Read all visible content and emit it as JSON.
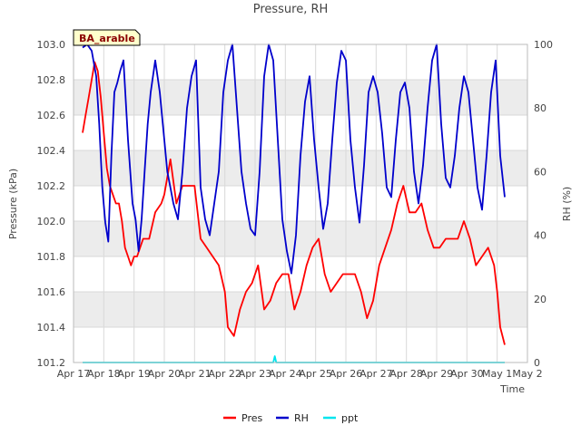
{
  "chart_data": {
    "type": "line",
    "title": "Pressure, RH",
    "site_label": "BA_arable",
    "xlabel": "Time",
    "ylabel_left": "Pressure (kPa)",
    "ylabel_right": "RH (%)",
    "x_ticks": [
      "Apr 17",
      "Apr 18",
      "Apr 19",
      "Apr 20",
      "Apr 21",
      "Apr 22",
      "Apr 23",
      "Apr 24",
      "Apr 25",
      "Apr 26",
      "Apr 27",
      "Apr 28",
      "Apr 29",
      "Apr 30",
      "May 1",
      "May 2"
    ],
    "xlim_days": [
      0,
      15
    ],
    "ylim_left": [
      101.2,
      103.0
    ],
    "left_ticks": [
      "101.2",
      "101.4",
      "101.6",
      "101.8",
      "102.0",
      "102.2",
      "102.4",
      "102.6",
      "102.8",
      "103.0"
    ],
    "ylim_right": [
      0,
      100
    ],
    "right_ticks": [
      "0",
      "20",
      "40",
      "60",
      "80",
      "100"
    ],
    "colors": {
      "Pres": "#ff0000",
      "RH": "#0000cc",
      "ppt": "#00e5ee",
      "band": "#ececec",
      "grid": "#d9d9d9"
    },
    "legend": [
      {
        "name": "Pres",
        "color": "#ff0000"
      },
      {
        "name": "RH",
        "color": "#0000cc"
      },
      {
        "name": "ppt",
        "color": "#00e5ee"
      }
    ],
    "series": [
      {
        "name": "Pres",
        "axis": "left",
        "x": [
          0.3,
          0.4,
          0.5,
          0.6,
          0.7,
          0.8,
          0.9,
          1.0,
          1.1,
          1.2,
          1.3,
          1.4,
          1.5,
          1.6,
          1.7,
          1.8,
          1.9,
          2.0,
          2.1,
          2.2,
          2.3,
          2.5,
          2.7,
          2.9,
          3.0,
          3.2,
          3.4,
          3.6,
          3.8,
          4.0,
          4.2,
          4.4,
          4.6,
          4.8,
          5.0,
          5.1,
          5.3,
          5.5,
          5.7,
          5.9,
          6.1,
          6.3,
          6.5,
          6.7,
          6.9,
          7.1,
          7.3,
          7.5,
          7.7,
          7.9,
          8.1,
          8.3,
          8.5,
          8.7,
          8.9,
          9.1,
          9.3,
          9.5,
          9.7,
          9.9,
          10.1,
          10.3,
          10.5,
          10.7,
          10.9,
          11.1,
          11.3,
          11.5,
          11.7,
          11.9,
          12.1,
          12.3,
          12.5,
          12.7,
          12.9,
          13.1,
          13.3,
          13.5,
          13.7,
          13.8,
          13.9,
          14.0,
          14.1,
          14.25
        ],
        "values": [
          102.5,
          102.6,
          102.7,
          102.8,
          102.9,
          102.85,
          102.7,
          102.5,
          102.3,
          102.2,
          102.15,
          102.1,
          102.1,
          102.0,
          101.85,
          101.8,
          101.75,
          101.8,
          101.8,
          101.85,
          101.9,
          101.9,
          102.05,
          102.1,
          102.15,
          102.35,
          102.1,
          102.2,
          102.2,
          102.2,
          101.9,
          101.85,
          101.8,
          101.75,
          101.6,
          101.4,
          101.35,
          101.5,
          101.6,
          101.65,
          101.75,
          101.5,
          101.55,
          101.65,
          101.7,
          101.7,
          101.5,
          101.6,
          101.75,
          101.85,
          101.9,
          101.7,
          101.6,
          101.65,
          101.7,
          101.7,
          101.7,
          101.6,
          101.45,
          101.55,
          101.75,
          101.85,
          101.95,
          102.1,
          102.2,
          102.05,
          102.05,
          102.1,
          101.95,
          101.85,
          101.85,
          101.9,
          101.9,
          101.9,
          102.0,
          101.9,
          101.75,
          101.8,
          101.85,
          101.8,
          101.75,
          101.6,
          101.4,
          101.3
        ]
      },
      {
        "name": "RH",
        "axis": "right",
        "x": [
          0.3,
          0.45,
          0.6,
          0.75,
          0.85,
          0.95,
          1.05,
          1.15,
          1.25,
          1.35,
          1.45,
          1.55,
          1.65,
          1.8,
          1.95,
          2.05,
          2.15,
          2.25,
          2.35,
          2.45,
          2.55,
          2.7,
          2.85,
          3.0,
          3.1,
          3.2,
          3.3,
          3.45,
          3.6,
          3.75,
          3.9,
          4.05,
          4.2,
          4.35,
          4.5,
          4.65,
          4.8,
          4.95,
          5.1,
          5.25,
          5.4,
          5.55,
          5.7,
          5.85,
          6.0,
          6.15,
          6.3,
          6.45,
          6.6,
          6.75,
          6.9,
          7.05,
          7.2,
          7.35,
          7.5,
          7.65,
          7.8,
          7.95,
          8.1,
          8.25,
          8.4,
          8.55,
          8.7,
          8.85,
          9.0,
          9.15,
          9.3,
          9.45,
          9.6,
          9.75,
          9.9,
          10.05,
          10.2,
          10.35,
          10.5,
          10.65,
          10.8,
          10.95,
          11.1,
          11.25,
          11.4,
          11.55,
          11.7,
          11.85,
          12.0,
          12.15,
          12.3,
          12.45,
          12.6,
          12.75,
          12.9,
          13.05,
          13.2,
          13.35,
          13.5,
          13.65,
          13.8,
          13.95,
          14.1,
          14.25
        ],
        "values": [
          99,
          100,
          98,
          90,
          75,
          55,
          44,
          38,
          65,
          85,
          88,
          92,
          95,
          70,
          50,
          45,
          35,
          45,
          60,
          75,
          85,
          95,
          85,
          70,
          60,
          55,
          50,
          45,
          60,
          80,
          90,
          95,
          55,
          45,
          40,
          50,
          60,
          85,
          95,
          100,
          80,
          60,
          50,
          42,
          40,
          60,
          90,
          100,
          95,
          70,
          45,
          35,
          28,
          40,
          65,
          82,
          90,
          70,
          55,
          42,
          50,
          70,
          88,
          98,
          95,
          70,
          55,
          44,
          62,
          85,
          90,
          85,
          72,
          55,
          52,
          70,
          85,
          88,
          80,
          60,
          50,
          62,
          80,
          95,
          100,
          75,
          58,
          55,
          65,
          80,
          90,
          85,
          70,
          55,
          48,
          65,
          85,
          95,
          65,
          52
        ]
      },
      {
        "name": "ppt",
        "axis": "right",
        "x": [
          0.3,
          6.5,
          6.6,
          6.65,
          6.7,
          6.8,
          14.25
        ],
        "values": [
          0,
          0,
          0,
          2,
          0,
          0,
          0
        ]
      }
    ]
  }
}
